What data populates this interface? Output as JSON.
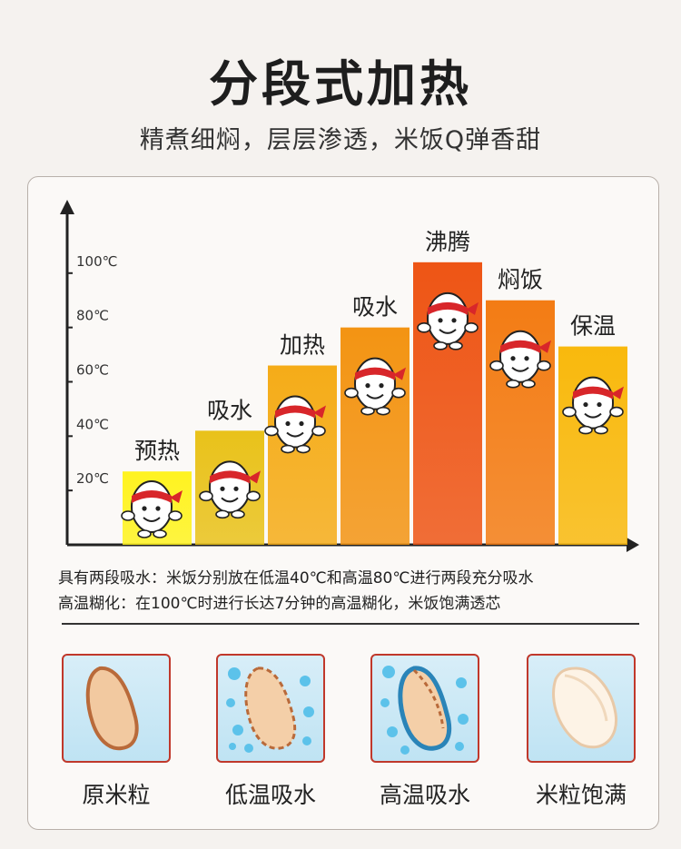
{
  "header": {
    "title": "分段式加热",
    "subtitle": "精煮细焖，层层渗透，米饭Q弹香甜"
  },
  "chart_data": {
    "type": "bar",
    "categories": [
      "预热",
      "吸水",
      "加热",
      "吸水",
      "沸腾",
      "焖饭",
      "保温"
    ],
    "values": [
      27,
      42,
      66,
      80,
      104,
      90,
      73
    ],
    "yticks": [
      "20℃",
      "40℃",
      "60℃",
      "80℃",
      "100℃"
    ],
    "ytick_values": [
      20,
      40,
      60,
      80,
      100
    ],
    "ylim": [
      0,
      125
    ],
    "grid": false,
    "legend": "none",
    "colors": [
      "#fff320",
      "#e9c21a",
      "#f5ac18",
      "#f39413",
      "#ee5515",
      "#f37c14",
      "#f9b90d"
    ]
  },
  "notes": {
    "line1": "具有两段吸水：米饭分别放在低温40℃和高温80℃进行两段充分吸水",
    "line2": "高温糊化：在100℃时进行长达7分钟的高温糊化，米饭饱满透芯"
  },
  "stages": [
    {
      "label": "原米粒"
    },
    {
      "label": "低温吸水"
    },
    {
      "label": "高温吸水"
    },
    {
      "label": "米粒饱满"
    }
  ],
  "colors": {
    "background": "#f5f2ef",
    "box_border": "#c0382b",
    "box_fill": "#cfe9f6",
    "grain": "#f2c9a0",
    "grain_edge": "#c98552",
    "water": "#4db8e6"
  }
}
